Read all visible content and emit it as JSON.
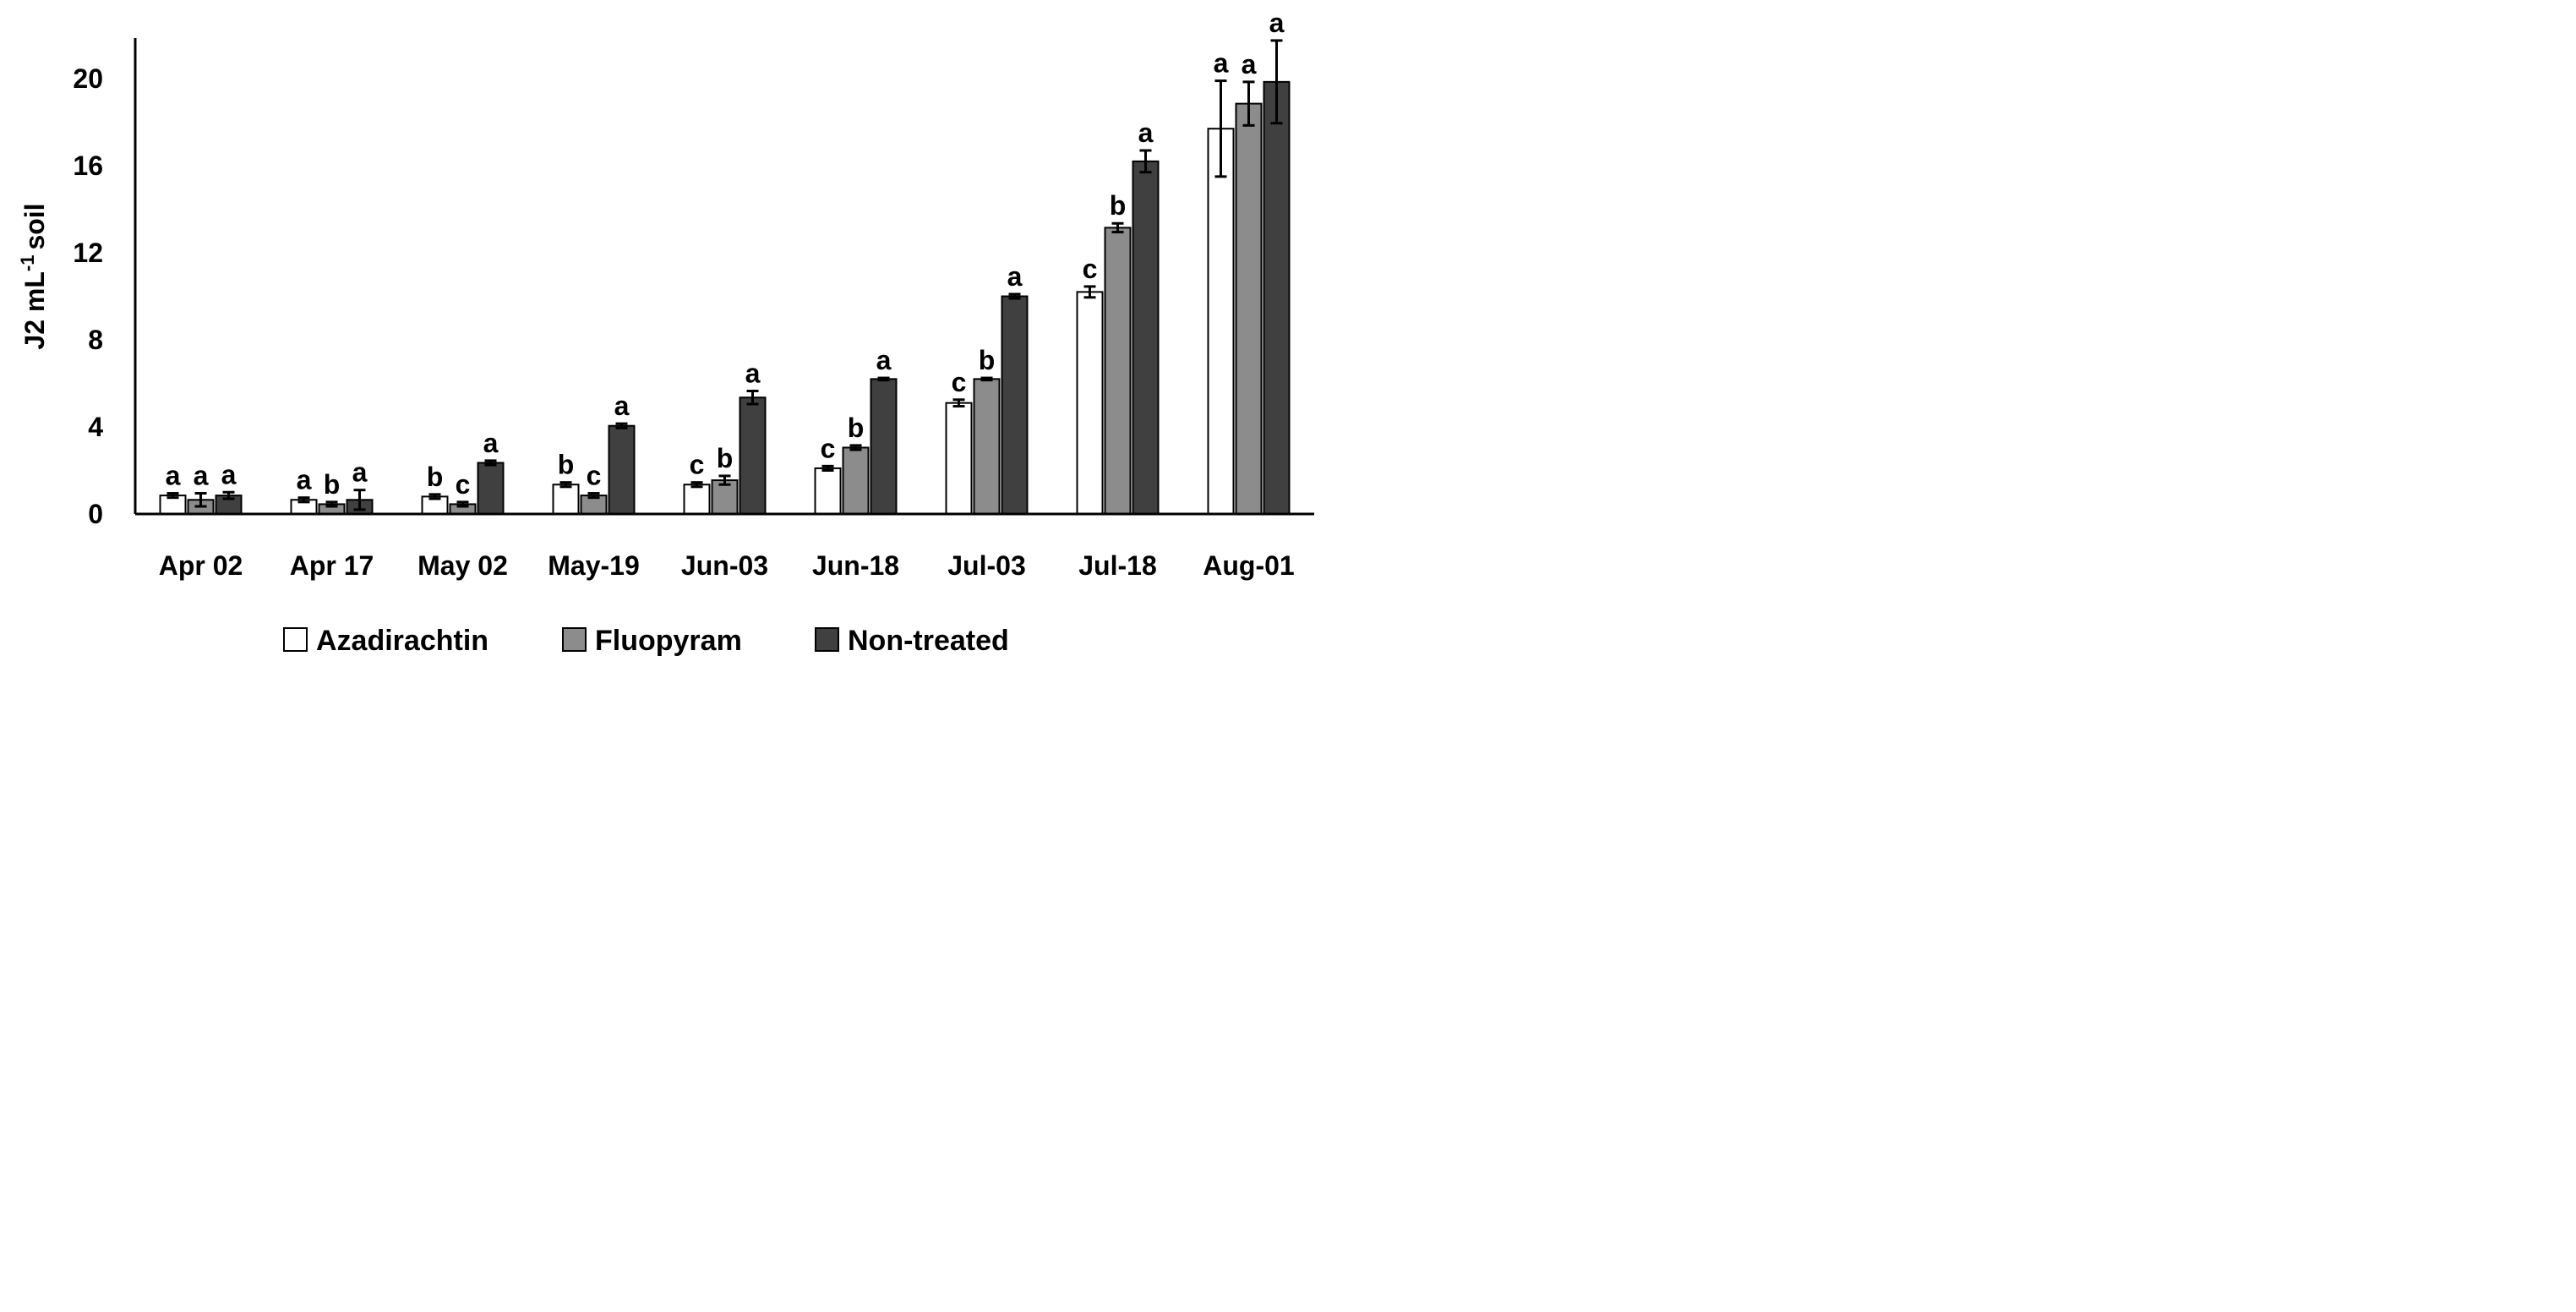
{
  "chart_data": {
    "type": "bar",
    "title": "",
    "xlabel": "",
    "ylabel": "J2 mL",
    "ylabel_superscript": "-1",
    "ylabel_suffix": "soil",
    "ylim": [
      0,
      22
    ],
    "yticks": [
      0,
      4,
      8,
      12,
      16,
      20
    ],
    "grid": false,
    "legend_position": "bottom",
    "categories": [
      "Apr 02",
      "Apr 17",
      "May 02",
      "May-19",
      "Jun-03",
      "Jun-18",
      "Jul-03",
      "Jul-18",
      "Aug-01"
    ],
    "series": [
      {
        "name": "Azadirachtin",
        "color": "#ffffff",
        "values": [
          0.85,
          0.65,
          0.8,
          1.35,
          1.35,
          2.1,
          5.1,
          10.2,
          17.7
        ],
        "errors": [
          0.1,
          0.1,
          0.1,
          0.1,
          0.1,
          0.1,
          0.15,
          0.25,
          2.2
        ],
        "letters": [
          "a",
          "a",
          "b",
          "b",
          "c",
          "c",
          "c",
          "c",
          "a"
        ]
      },
      {
        "name": "Fluopyram",
        "color": "#8c8c8c",
        "values": [
          0.65,
          0.45,
          0.45,
          0.85,
          1.55,
          3.05,
          6.2,
          13.15,
          18.85
        ],
        "errors": [
          0.3,
          0.1,
          0.1,
          0.1,
          0.2,
          0.1,
          0.05,
          0.2,
          1.0
        ],
        "letters": [
          "a",
          "b",
          "c",
          "c",
          "b",
          "b",
          "b",
          "b",
          "a"
        ]
      },
      {
        "name": "Non-treated",
        "color": "#404040",
        "values": [
          0.85,
          0.65,
          2.35,
          4.05,
          5.35,
          6.2,
          10.0,
          16.2,
          19.85
        ],
        "errors": [
          0.15,
          0.45,
          0.1,
          0.1,
          0.3,
          0.05,
          0.1,
          0.5,
          1.9
        ],
        "letters": [
          "a",
          "a",
          "a",
          "a",
          "a",
          "a",
          "a",
          "a",
          "a"
        ]
      }
    ]
  }
}
